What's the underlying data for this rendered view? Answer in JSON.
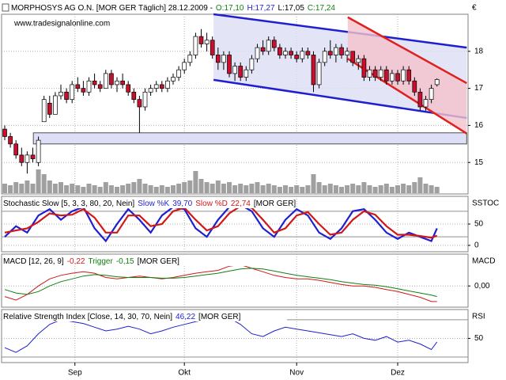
{
  "chart_data": [
    {
      "type": "candlestick",
      "title": "MORPHOSYS AG O.N. [MOR GER  Täglich] 28.12.2009 -",
      "quote": [
        "O:17,10",
        "H:17,27",
        "L:17,05",
        "C:17,24"
      ],
      "watermark": "www.tradesignalonline.com",
      "currency": "€",
      "ylim": [
        14.15,
        19.0
      ],
      "yticks": [
        15,
        16,
        17,
        18
      ],
      "grid": true,
      "up_color": "#ffffff",
      "down_color": "#c8102e",
      "candles": [
        [
          15.9,
          16.0,
          15.6,
          15.7
        ],
        [
          15.7,
          15.8,
          15.4,
          15.5
        ],
        [
          15.5,
          15.6,
          15.1,
          15.2
        ],
        [
          15.2,
          15.4,
          14.9,
          15.0
        ],
        [
          15.0,
          15.3,
          14.7,
          15.2
        ],
        [
          15.2,
          15.4,
          15.0,
          15.1
        ],
        [
          15.0,
          15.7,
          14.9,
          15.6
        ],
        [
          16.1,
          16.8,
          16.1,
          16.7
        ],
        [
          16.6,
          16.8,
          16.2,
          16.3
        ],
        [
          16.3,
          16.9,
          16.3,
          16.8
        ],
        [
          16.8,
          17.1,
          16.7,
          16.9
        ],
        [
          16.9,
          17.0,
          16.6,
          16.7
        ],
        [
          16.7,
          17.2,
          16.6,
          17.1
        ],
        [
          17.1,
          17.3,
          16.9,
          17.0
        ],
        [
          17.0,
          17.2,
          16.8,
          16.9
        ],
        [
          16.9,
          17.3,
          16.8,
          17.2
        ],
        [
          17.2,
          17.4,
          17.0,
          17.1
        ],
        [
          17.1,
          17.2,
          16.9,
          17.0
        ],
        [
          17.0,
          17.5,
          17.0,
          17.4
        ],
        [
          17.4,
          17.5,
          17.0,
          17.1
        ],
        [
          17.1,
          17.3,
          16.9,
          17.2
        ],
        [
          17.2,
          17.4,
          17.0,
          17.1
        ],
        [
          17.1,
          17.2,
          16.8,
          16.9
        ],
        [
          16.9,
          17.0,
          16.6,
          16.7
        ],
        [
          16.7,
          16.8,
          15.8,
          16.5
        ],
        [
          16.5,
          17.0,
          16.4,
          16.9
        ],
        [
          16.9,
          17.1,
          16.8,
          17.0
        ],
        [
          17.0,
          17.2,
          16.9,
          17.1
        ],
        [
          17.1,
          17.2,
          16.9,
          17.0
        ],
        [
          17.0,
          17.3,
          16.9,
          17.2
        ],
        [
          17.2,
          17.4,
          17.1,
          17.3
        ],
        [
          17.3,
          17.6,
          17.2,
          17.5
        ],
        [
          17.5,
          17.8,
          17.4,
          17.7
        ],
        [
          17.7,
          18.0,
          17.6,
          17.9
        ],
        [
          17.9,
          18.5,
          17.8,
          18.4
        ],
        [
          18.4,
          18.6,
          18.1,
          18.2
        ],
        [
          18.2,
          18.5,
          18.0,
          18.3
        ],
        [
          18.3,
          18.4,
          17.8,
          17.9
        ],
        [
          17.9,
          18.1,
          17.5,
          17.7
        ],
        [
          17.7,
          18.0,
          17.5,
          17.9
        ],
        [
          17.9,
          18.0,
          17.3,
          17.4
        ],
        [
          17.4,
          17.7,
          17.2,
          17.6
        ],
        [
          17.6,
          17.7,
          17.2,
          17.3
        ],
        [
          17.3,
          17.6,
          17.2,
          17.5
        ],
        [
          17.5,
          17.9,
          17.4,
          17.8
        ],
        [
          17.8,
          18.2,
          17.7,
          18.1
        ],
        [
          18.1,
          18.3,
          17.9,
          18.0
        ],
        [
          18.0,
          18.4,
          17.9,
          18.3
        ],
        [
          18.3,
          18.4,
          18.0,
          18.1
        ],
        [
          18.1,
          18.2,
          17.8,
          17.9
        ],
        [
          17.9,
          18.1,
          17.8,
          18.0
        ],
        [
          18.0,
          18.1,
          17.8,
          17.9
        ],
        [
          17.9,
          18.0,
          17.7,
          17.8
        ],
        [
          17.8,
          18.1,
          17.7,
          18.0
        ],
        [
          18.0,
          18.1,
          17.8,
          17.9
        ],
        [
          17.9,
          18.0,
          16.9,
          17.1
        ],
        [
          17.1,
          17.8,
          17.0,
          17.7
        ],
        [
          17.7,
          18.1,
          17.6,
          18.0
        ],
        [
          18.0,
          18.3,
          17.8,
          17.9
        ],
        [
          17.9,
          18.2,
          17.7,
          18.1
        ],
        [
          18.1,
          18.2,
          17.8,
          17.9
        ],
        [
          17.9,
          18.1,
          17.7,
          18.0
        ],
        [
          18.0,
          18.0,
          17.6,
          17.7
        ],
        [
          17.7,
          17.9,
          17.5,
          17.8
        ],
        [
          17.8,
          17.9,
          17.2,
          17.3
        ],
        [
          17.3,
          17.6,
          17.2,
          17.5
        ],
        [
          17.5,
          17.6,
          17.2,
          17.3
        ],
        [
          17.3,
          17.6,
          17.2,
          17.5
        ],
        [
          17.5,
          17.6,
          17.1,
          17.2
        ],
        [
          17.2,
          17.5,
          17.1,
          17.4
        ],
        [
          17.4,
          17.5,
          17.1,
          17.2
        ],
        [
          17.2,
          17.6,
          17.1,
          17.5
        ],
        [
          17.5,
          17.6,
          17.1,
          17.2
        ],
        [
          17.2,
          17.3,
          16.8,
          16.9
        ],
        [
          16.9,
          17.0,
          16.4,
          16.5
        ],
        [
          16.5,
          16.8,
          16.4,
          16.7
        ],
        [
          16.7,
          17.1,
          16.6,
          17.0
        ],
        [
          17.1,
          17.27,
          17.05,
          17.24
        ]
      ],
      "volume_color": "#a0a0a0",
      "vlim": [
        0,
        30
      ],
      "volume": [
        6,
        5,
        7,
        6,
        8,
        6,
        15,
        12,
        8,
        6,
        7,
        5,
        6,
        5,
        4,
        6,
        5,
        4,
        7,
        5,
        4,
        5,
        6,
        7,
        9,
        6,
        5,
        4,
        5,
        4,
        5,
        6,
        7,
        8,
        14,
        9,
        7,
        6,
        8,
        6,
        7,
        5,
        6,
        5,
        6,
        7,
        5,
        6,
        5,
        4,
        5,
        4,
        5,
        4,
        5,
        12,
        7,
        5,
        6,
        5,
        4,
        5,
        6,
        5,
        7,
        5,
        4,
        5,
        6,
        4,
        5,
        6,
        5,
        7,
        10,
        6,
        5,
        4
      ],
      "channels": [
        {
          "color": "#1f1fd0",
          "fill": "#dcdff5",
          "upper": [
            [
              37.2,
              19.0
            ],
            [
              82.3,
              18.1
            ]
          ],
          "lower": [
            [
              37.2,
              17.23
            ],
            [
              82.3,
              16.2
            ]
          ]
        },
        {
          "color": "#e0201e",
          "fill": "#f2c2cc",
          "upper": [
            [
              61.1,
              18.92
            ],
            [
              82.3,
              17.14
            ]
          ],
          "lower": [
            [
              61.1,
              17.8
            ],
            [
              82.3,
              15.78
            ]
          ]
        }
      ],
      "box": {
        "x": [
          5.1,
          82.3
        ],
        "y": [
          15.5,
          15.8
        ],
        "color": "#dcdff5"
      }
    },
    {
      "type": "line",
      "title": "Stochastic Slow [5, 3, 3, 80, 20, Nein]",
      "suffix": "[MOR GER]",
      "axis_label": "SSTOC",
      "ylim": [
        -15,
        115
      ],
      "yticks": [
        0,
        50
      ],
      "levels": [
        80,
        20
      ],
      "x": [
        0,
        2,
        4,
        6,
        8,
        10,
        12,
        14,
        16,
        18,
        20,
        22,
        24,
        26,
        28,
        30,
        32,
        34,
        36,
        38,
        40,
        42,
        44,
        46,
        48,
        50,
        52,
        54,
        56,
        58,
        60,
        62,
        64,
        66,
        68,
        70,
        72,
        74,
        76,
        77
      ],
      "series": [
        {
          "name": "Slow %K",
          "last_label": "39,70",
          "color": "#1f1fd0",
          "values": [
            20,
            45,
            30,
            70,
            85,
            60,
            80,
            90,
            40,
            10,
            50,
            85,
            60,
            30,
            70,
            90,
            85,
            40,
            20,
            60,
            90,
            95,
            80,
            40,
            20,
            60,
            85,
            70,
            30,
            15,
            40,
            80,
            85,
            60,
            30,
            15,
            30,
            20,
            10,
            39.7
          ]
        },
        {
          "name": "Slow %D",
          "last_label": "22,74",
          "color": "#d01818",
          "values": [
            30,
            35,
            40,
            55,
            75,
            70,
            72,
            85,
            65,
            30,
            30,
            70,
            70,
            45,
            50,
            80,
            88,
            60,
            35,
            45,
            75,
            92,
            88,
            60,
            30,
            40,
            70,
            78,
            50,
            25,
            30,
            60,
            80,
            72,
            45,
            25,
            25,
            22,
            18,
            22.74
          ]
        }
      ]
    },
    {
      "type": "line",
      "title": "MACD [12, 26, 9]",
      "suffix": "[MOR GER]",
      "axis_label": "MACD",
      "ylim": [
        -0.3,
        0.45
      ],
      "yticks": [
        {
          "value": 0,
          "label": "0,00"
        }
      ],
      "x": [
        0,
        2,
        4,
        6,
        8,
        10,
        12,
        14,
        16,
        18,
        20,
        22,
        24,
        26,
        28,
        30,
        32,
        34,
        36,
        38,
        40,
        42,
        44,
        46,
        48,
        50,
        52,
        54,
        56,
        58,
        60,
        62,
        64,
        66,
        68,
        70,
        72,
        74,
        76,
        77
      ],
      "series": [
        {
          "last_label": "-0,22",
          "color": "#d01818",
          "values": [
            -0.15,
            -0.2,
            -0.12,
            0.0,
            0.1,
            0.15,
            0.18,
            0.2,
            0.18,
            0.12,
            0.1,
            0.12,
            0.14,
            0.12,
            0.1,
            0.12,
            0.15,
            0.18,
            0.2,
            0.22,
            0.28,
            0.3,
            0.25,
            0.2,
            0.15,
            0.12,
            0.1,
            0.1,
            0.08,
            0.05,
            0.02,
            0.0,
            0.0,
            -0.02,
            -0.05,
            -0.08,
            -0.12,
            -0.16,
            -0.22,
            -0.22
          ]
        },
        {
          "name": "Trigger",
          "last_label": "-0,15",
          "color": "#108010",
          "values": [
            -0.05,
            -0.1,
            -0.12,
            -0.08,
            0.0,
            0.06,
            0.1,
            0.14,
            0.16,
            0.15,
            0.13,
            0.12,
            0.12,
            0.12,
            0.11,
            0.11,
            0.12,
            0.14,
            0.16,
            0.18,
            0.21,
            0.24,
            0.25,
            0.24,
            0.21,
            0.18,
            0.15,
            0.13,
            0.11,
            0.09,
            0.06,
            0.04,
            0.02,
            0.01,
            -0.01,
            -0.04,
            -0.07,
            -0.1,
            -0.13,
            -0.15
          ]
        }
      ]
    },
    {
      "type": "line",
      "title": "Relative Strength Index [Close, 14, 30, 70, Nein]",
      "suffix": "[MOR GER]",
      "axis_label": "RSI",
      "ylim": [
        24,
        81
      ],
      "yticks": [
        50
      ],
      "levels": [
        70,
        30
      ],
      "x": [
        0,
        2,
        4,
        6,
        8,
        10,
        12,
        14,
        16,
        18,
        20,
        22,
        24,
        26,
        28,
        30,
        32,
        34,
        36,
        38,
        40,
        42,
        44,
        46,
        48,
        50,
        52,
        54,
        56,
        58,
        60,
        62,
        64,
        66,
        68,
        70,
        72,
        74,
        76,
        77
      ],
      "series": [
        {
          "last_label": "46,22",
          "color": "#1f1fd0",
          "values": [
            40,
            35,
            42,
            55,
            65,
            70,
            68,
            66,
            62,
            58,
            60,
            63,
            60,
            55,
            58,
            62,
            65,
            68,
            70,
            74,
            72,
            65,
            55,
            52,
            58,
            62,
            60,
            58,
            56,
            54,
            52,
            55,
            50,
            48,
            52,
            46,
            48,
            44,
            38,
            46.22
          ]
        }
      ],
      "xticks": [
        {
          "value": 12.5,
          "label": "Sep"
        },
        {
          "value": 32,
          "label": "Okt"
        },
        {
          "value": 52,
          "label": "Nov"
        },
        {
          "value": 70,
          "label": "Dez"
        }
      ]
    }
  ]
}
